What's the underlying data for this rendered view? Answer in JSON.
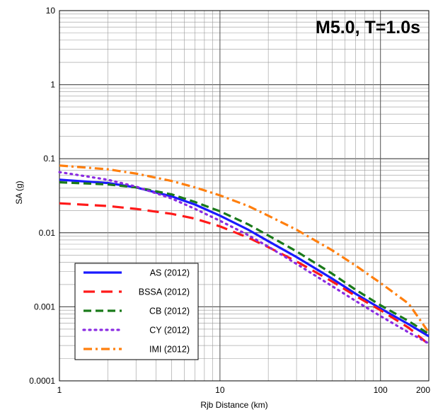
{
  "chart_data": {
    "type": "line",
    "title": "M5.0, T=1.0s",
    "xlabel": "Rjb Distance (km)",
    "ylabel": "SA (g)",
    "xscale": "log",
    "yscale": "log",
    "xlim": [
      1,
      200
    ],
    "ylim": [
      0.0001,
      10
    ],
    "grid": true,
    "legend_position": "bottom-left",
    "x_tick_labels": [
      "1",
      "10",
      "100",
      "200"
    ],
    "y_tick_labels": [
      "0.0001",
      "0.001",
      "0.01",
      "0.1",
      "1",
      "10"
    ],
    "series": [
      {
        "name": "AS (2012)",
        "color": "#1a1aff",
        "dash": "solid",
        "x": [
          1,
          2,
          3,
          5,
          7,
          10,
          15,
          20,
          30,
          50,
          70,
          100,
          150,
          200
        ],
        "y": [
          0.052,
          0.047,
          0.041,
          0.031,
          0.024,
          0.017,
          0.011,
          0.0077,
          0.0047,
          0.0024,
          0.0015,
          0.00095,
          0.00058,
          0.0004
        ]
      },
      {
        "name": "BSSA (2012)",
        "color": "#ff1a1a",
        "dash": "long-dash",
        "x": [
          1,
          2,
          3,
          5,
          7,
          10,
          15,
          20,
          30,
          50,
          70,
          100,
          150,
          200
        ],
        "y": [
          0.025,
          0.023,
          0.021,
          0.018,
          0.0155,
          0.0122,
          0.0086,
          0.0064,
          0.0041,
          0.0022,
          0.0014,
          0.0009,
          0.00052,
          0.00031
        ]
      },
      {
        "name": "CB (2012)",
        "color": "#1a7a1a",
        "dash": "dash",
        "x": [
          1,
          2,
          3,
          5,
          7,
          10,
          15,
          20,
          30,
          50,
          70,
          100,
          150,
          200
        ],
        "y": [
          0.048,
          0.045,
          0.041,
          0.033,
          0.026,
          0.0195,
          0.013,
          0.0092,
          0.0056,
          0.0028,
          0.0017,
          0.00105,
          0.00064,
          0.00043
        ]
      },
      {
        "name": "CY (2012)",
        "color": "#8a2be2",
        "dash": "dot",
        "x": [
          1,
          2,
          3,
          5,
          7,
          10,
          15,
          20,
          30,
          50,
          70,
          100,
          150,
          200
        ],
        "y": [
          0.066,
          0.052,
          0.042,
          0.029,
          0.021,
          0.0145,
          0.0093,
          0.0065,
          0.0038,
          0.0019,
          0.0012,
          0.00075,
          0.00045,
          0.00032
        ]
      },
      {
        "name": "IMI (2012)",
        "color": "#ff7f0e",
        "dash": "dash-dot",
        "x": [
          1,
          2,
          3,
          5,
          7,
          10,
          15,
          20,
          30,
          50,
          70,
          100,
          150,
          200
        ],
        "y": [
          0.081,
          0.072,
          0.063,
          0.05,
          0.041,
          0.032,
          0.023,
          0.017,
          0.011,
          0.0058,
          0.0036,
          0.0021,
          0.0011,
          0.00045
        ]
      }
    ]
  }
}
